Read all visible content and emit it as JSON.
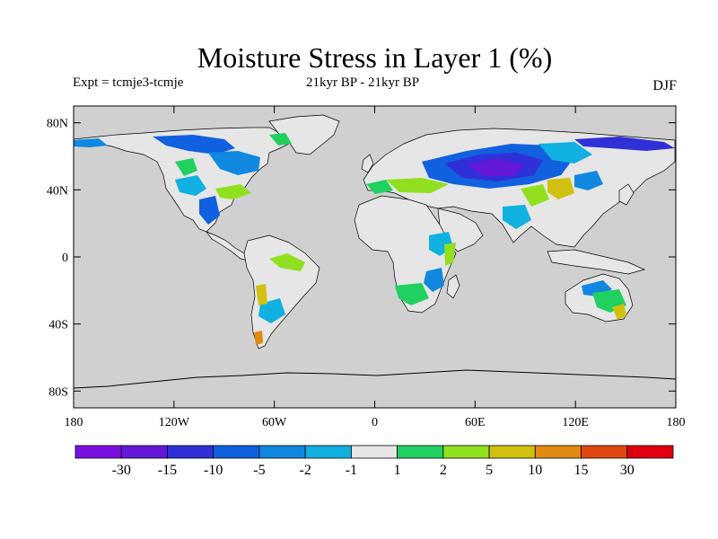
{
  "title": "Moisture Stress in Layer 1 (%)",
  "subtitle_left": "Expt = tcmje3-tcmje",
  "subtitle_center": "21kyr BP - 21kyr BP",
  "subtitle_right": "DJF",
  "map": {
    "projection": "cylindrical equidistant",
    "lon_range": [
      -180,
      180
    ],
    "lat_range": [
      -90,
      90
    ],
    "background_color": "#d0d0d0",
    "land_neutral_color": "#e6e6e6",
    "x_ticks": [
      {
        "lon": -180,
        "label": "180"
      },
      {
        "lon": -120,
        "label": "120W"
      },
      {
        "lon": -60,
        "label": "60W"
      },
      {
        "lon": 0,
        "label": "0"
      },
      {
        "lon": 60,
        "label": "60E"
      },
      {
        "lon": 120,
        "label": "120E"
      },
      {
        "lon": 180,
        "label": "180"
      }
    ],
    "y_ticks": [
      {
        "lat": 80,
        "label": "80N"
      },
      {
        "lat": 40,
        "label": "40N"
      },
      {
        "lat": 0,
        "label": "0"
      },
      {
        "lat": -40,
        "label": "40S"
      },
      {
        "lat": -80,
        "label": "80S"
      }
    ]
  },
  "colorbar": {
    "colors": [
      "#7a10e0",
      "#6418d8",
      "#3030d8",
      "#1060e0",
      "#1088e0",
      "#10b0e0",
      "#e6e6e6",
      "#20d060",
      "#90e020",
      "#d0c010",
      "#e08a10",
      "#e04810",
      "#e00010"
    ],
    "labels": [
      "-30",
      "-15",
      "-10",
      "-5",
      "-2",
      "-1",
      "1",
      "2",
      "5",
      "10",
      "15",
      "30"
    ]
  }
}
